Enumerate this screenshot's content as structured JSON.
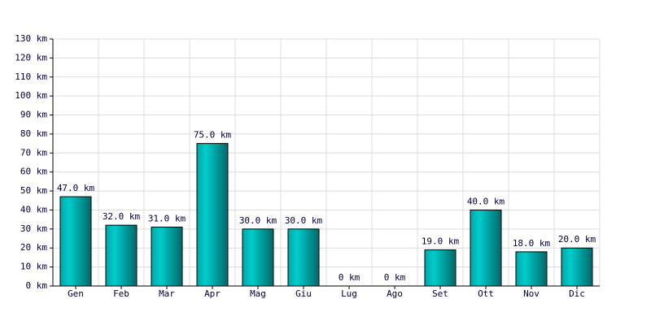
{
  "chart_data": {
    "type": "bar",
    "categories": [
      "Gen",
      "Feb",
      "Mar",
      "Apr",
      "Mag",
      "Giu",
      "Lug",
      "Ago",
      "Set",
      "Ott",
      "Nov",
      "Dic"
    ],
    "values": [
      47,
      32,
      31,
      75,
      30,
      30,
      0,
      0,
      19,
      40,
      18,
      20
    ],
    "value_labels": [
      "47.0 km",
      "32.0 km",
      "31.0 km",
      "75.0 km",
      "30.0 km",
      "30.0 km",
      "0 km",
      "0 km",
      "19.0 km",
      "40.0 km",
      "18.0 km",
      "20.0 km"
    ],
    "color": "#00cccc",
    "ylim": [
      0,
      130
    ],
    "yticks": [
      {
        "value": 0,
        "label": "0 km"
      },
      {
        "value": 10,
        "label": "10 km"
      },
      {
        "value": 20,
        "label": "20 km"
      },
      {
        "value": 30,
        "label": "30 km"
      },
      {
        "value": 40,
        "label": "40 km"
      },
      {
        "value": 50,
        "label": "50 km"
      },
      {
        "value": 60,
        "label": "60 km"
      },
      {
        "value": 70,
        "label": "70 km"
      },
      {
        "value": 80,
        "label": "80 km"
      },
      {
        "value": 90,
        "label": "90 km"
      },
      {
        "value": 100,
        "label": "100 km"
      },
      {
        "value": 110,
        "label": "110 km"
      },
      {
        "value": 120,
        "label": "120 km"
      },
      {
        "value": 130,
        "label": "130 km"
      }
    ],
    "grid": true
  }
}
